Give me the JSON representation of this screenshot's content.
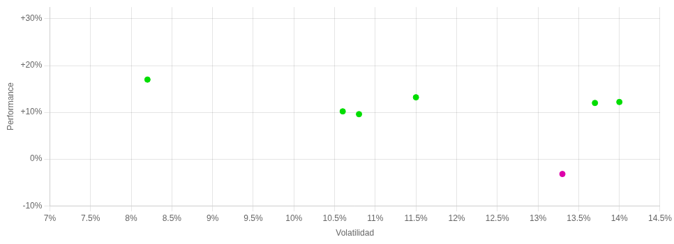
{
  "chart_data": {
    "type": "scatter",
    "xlabel": "Volatilidad",
    "ylabel": "Performance",
    "xlim": [
      0.07,
      0.145
    ],
    "ylim": [
      -0.1,
      0.325
    ],
    "xticks": [
      {
        "value": 0.07,
        "label": "7%"
      },
      {
        "value": 0.075,
        "label": "7.5%"
      },
      {
        "value": 0.08,
        "label": "8%"
      },
      {
        "value": 0.085,
        "label": "8.5%"
      },
      {
        "value": 0.09,
        "label": "9%"
      },
      {
        "value": 0.095,
        "label": "9.5%"
      },
      {
        "value": 0.1,
        "label": "10%"
      },
      {
        "value": 0.105,
        "label": "10.5%"
      },
      {
        "value": 0.11,
        "label": "11%"
      },
      {
        "value": 0.115,
        "label": "11.5%"
      },
      {
        "value": 0.12,
        "label": "12%"
      },
      {
        "value": 0.125,
        "label": "12.5%"
      },
      {
        "value": 0.13,
        "label": "13%"
      },
      {
        "value": 0.135,
        "label": "13.5%"
      },
      {
        "value": 0.14,
        "label": "14%"
      },
      {
        "value": 0.145,
        "label": "14.5%"
      }
    ],
    "yticks": [
      {
        "value": -0.1,
        "label": "-10%"
      },
      {
        "value": 0.0,
        "label": "0%"
      },
      {
        "value": 0.1,
        "label": "+10%"
      },
      {
        "value": 0.2,
        "label": "+20%"
      },
      {
        "value": 0.3,
        "label": "+30%"
      }
    ],
    "grid": true,
    "series": [
      {
        "color": "#00dd00",
        "marker": "circle",
        "x": [
          0.082,
          0.106,
          0.108,
          0.115,
          0.137,
          0.14
        ],
        "values": [
          0.17,
          0.102,
          0.096,
          0.132,
          0.12,
          0.122
        ]
      },
      {
        "color": "#dd00aa",
        "marker": "circle",
        "x": [
          0.133
        ],
        "values": [
          -0.032
        ]
      }
    ]
  }
}
